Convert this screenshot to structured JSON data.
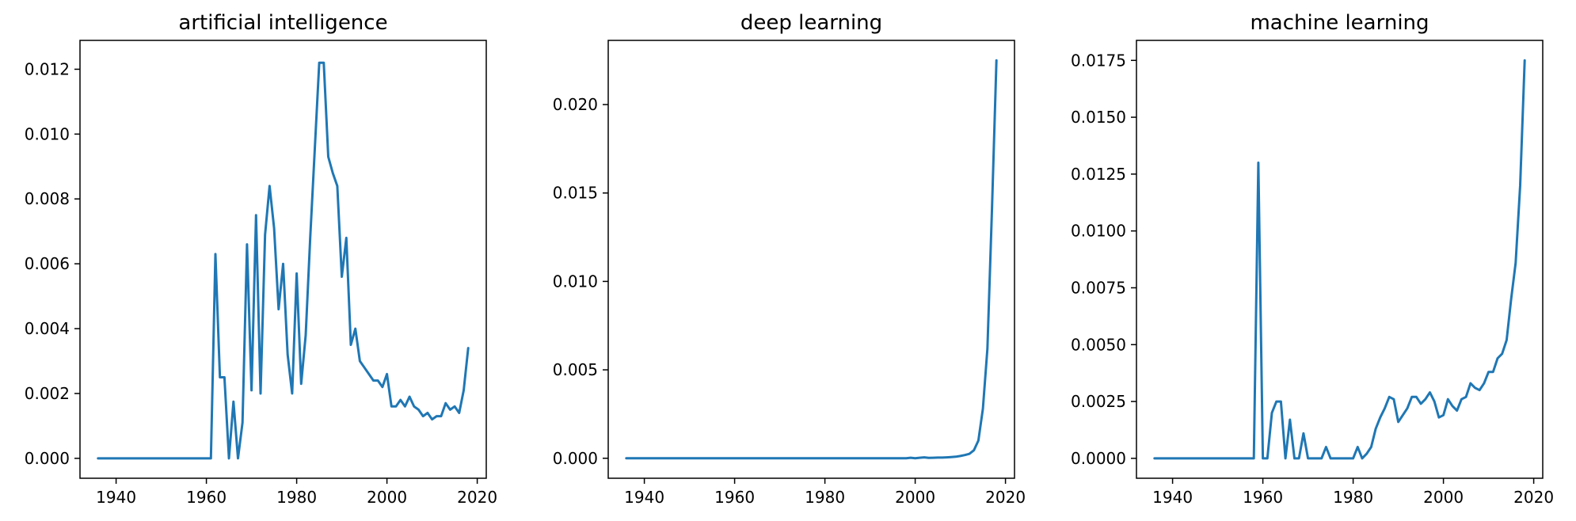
{
  "colors": {
    "series": "#1f77b4",
    "axis": "#000000",
    "background": "#ffffff"
  },
  "chart_data": [
    {
      "type": "line",
      "title": "artificial intelligence",
      "xlabel": "",
      "ylabel": "",
      "xlim": [
        1932,
        2022
      ],
      "ylim": [
        -0.000614,
        0.01289
      ],
      "xticks": [
        1940,
        1960,
        1980,
        2000,
        2020
      ],
      "xtick_labels": [
        "1940",
        "1960",
        "1980",
        "2000",
        "2020"
      ],
      "yticks": [
        0,
        0.002,
        0.004,
        0.006,
        0.008,
        0.01,
        0.012
      ],
      "ytick_labels": [
        "0.000",
        "0.002",
        "0.004",
        "0.006",
        "0.008",
        "0.010",
        "0.012"
      ],
      "grid": false,
      "x": [
        1936,
        1937,
        1938,
        1939,
        1940,
        1941,
        1942,
        1943,
        1944,
        1945,
        1946,
        1947,
        1948,
        1949,
        1950,
        1951,
        1952,
        1953,
        1954,
        1955,
        1956,
        1957,
        1958,
        1959,
        1960,
        1961,
        1962,
        1963,
        1964,
        1965,
        1966,
        1967,
        1968,
        1969,
        1970,
        1971,
        1972,
        1973,
        1974,
        1975,
        1976,
        1977,
        1978,
        1979,
        1980,
        1981,
        1982,
        1983,
        1984,
        1985,
        1986,
        1987,
        1988,
        1989,
        1990,
        1991,
        1992,
        1993,
        1994,
        1995,
        1996,
        1997,
        1998,
        1999,
        2000,
        2001,
        2002,
        2003,
        2004,
        2005,
        2006,
        2007,
        2008,
        2009,
        2010,
        2011,
        2012,
        2013,
        2014,
        2015,
        2016,
        2017,
        2018
      ],
      "y": [
        0,
        0,
        0,
        0,
        0,
        0,
        0,
        0,
        0,
        0,
        0,
        0,
        0,
        0,
        0,
        0,
        0,
        0,
        0,
        0,
        0,
        0,
        0,
        0,
        0,
        0,
        0.0063,
        0.0025,
        0.0025,
        0,
        0.00175,
        0,
        0.0011,
        0.0066,
        0.0021,
        0.0075,
        0.002,
        0.0069,
        0.0084,
        0.0071,
        0.0046,
        0.006,
        0.0032,
        0.002,
        0.0057,
        0.0023,
        0.0038,
        0.0068,
        0.0095,
        0.0122,
        0.0122,
        0.0093,
        0.0088,
        0.0084,
        0.0056,
        0.0068,
        0.0035,
        0.004,
        0.003,
        0.0028,
        0.0026,
        0.0024,
        0.0024,
        0.0022,
        0.0026,
        0.0016,
        0.0016,
        0.0018,
        0.0016,
        0.0019,
        0.0016,
        0.0015,
        0.0013,
        0.0014,
        0.0012,
        0.0013,
        0.0013,
        0.0017,
        0.0015,
        0.0016,
        0.0014,
        0.0021,
        0.0034
      ]
    },
    {
      "type": "line",
      "title": "deep learning",
      "xlabel": "",
      "ylabel": "",
      "xlim": [
        1932,
        2022
      ],
      "ylim": [
        -0.00113,
        0.02363
      ],
      "xticks": [
        1940,
        1960,
        1980,
        2000,
        2020
      ],
      "xtick_labels": [
        "1940",
        "1960",
        "1980",
        "2000",
        "2020"
      ],
      "yticks": [
        0,
        0.005,
        0.01,
        0.015,
        0.02
      ],
      "ytick_labels": [
        "0.000",
        "0.005",
        "0.010",
        "0.015",
        "0.020"
      ],
      "grid": false,
      "x": [
        1936,
        1937,
        1938,
        1939,
        1940,
        1941,
        1942,
        1943,
        1944,
        1945,
        1946,
        1947,
        1948,
        1949,
        1950,
        1951,
        1952,
        1953,
        1954,
        1955,
        1956,
        1957,
        1958,
        1959,
        1960,
        1961,
        1962,
        1963,
        1964,
        1965,
        1966,
        1967,
        1968,
        1969,
        1970,
        1971,
        1972,
        1973,
        1974,
        1975,
        1976,
        1977,
        1978,
        1979,
        1980,
        1981,
        1982,
        1983,
        1984,
        1985,
        1986,
        1987,
        1988,
        1989,
        1990,
        1991,
        1992,
        1993,
        1994,
        1995,
        1996,
        1997,
        1998,
        1999,
        2000,
        2001,
        2002,
        2003,
        2004,
        2005,
        2006,
        2007,
        2008,
        2009,
        2010,
        2011,
        2012,
        2013,
        2014,
        2015,
        2016,
        2017,
        2018
      ],
      "y": [
        0,
        0,
        0,
        0,
        0,
        0,
        0,
        0,
        0,
        0,
        0,
        0,
        0,
        0,
        0,
        0,
        0,
        0,
        0,
        0,
        0,
        0,
        0,
        0,
        0,
        0,
        0,
        0,
        0,
        0,
        0,
        0,
        0,
        0,
        0,
        0,
        0,
        0,
        0,
        0,
        0,
        0,
        0,
        0,
        0,
        0,
        0,
        0,
        0,
        0,
        0,
        0,
        0,
        0,
        0,
        0,
        0,
        0,
        0,
        0,
        0,
        0,
        0,
        3e-05,
        0,
        3e-05,
        5e-05,
        2e-05,
        3e-05,
        4e-05,
        4e-05,
        5e-05,
        7e-05,
        9e-05,
        0.00013,
        0.00018,
        0.00025,
        0.00045,
        0.001,
        0.0028,
        0.0062,
        0.014,
        0.0225
      ]
    },
    {
      "type": "line",
      "title": "machine learning",
      "xlabel": "",
      "ylabel": "",
      "xlim": [
        1932,
        2022
      ],
      "ylim": [
        -0.000875,
        0.01838
      ],
      "xticks": [
        1940,
        1960,
        1980,
        2000,
        2020
      ],
      "xtick_labels": [
        "1940",
        "1960",
        "1980",
        "2000",
        "2020"
      ],
      "yticks": [
        0,
        0.0025,
        0.005,
        0.0075,
        0.01,
        0.0125,
        0.015,
        0.0175
      ],
      "ytick_labels": [
        "0.0000",
        "0.0025",
        "0.0050",
        "0.0075",
        "0.0100",
        "0.0125",
        "0.0150",
        "0.0175"
      ],
      "grid": false,
      "x": [
        1936,
        1937,
        1938,
        1939,
        1940,
        1941,
        1942,
        1943,
        1944,
        1945,
        1946,
        1947,
        1948,
        1949,
        1950,
        1951,
        1952,
        1953,
        1954,
        1955,
        1956,
        1957,
        1958,
        1959,
        1960,
        1961,
        1962,
        1963,
        1964,
        1965,
        1966,
        1967,
        1968,
        1969,
        1970,
        1971,
        1972,
        1973,
        1974,
        1975,
        1976,
        1977,
        1978,
        1979,
        1980,
        1981,
        1982,
        1983,
        1984,
        1985,
        1986,
        1987,
        1988,
        1989,
        1990,
        1991,
        1992,
        1993,
        1994,
        1995,
        1996,
        1997,
        1998,
        1999,
        2000,
        2001,
        2002,
        2003,
        2004,
        2005,
        2006,
        2007,
        2008,
        2009,
        2010,
        2011,
        2012,
        2013,
        2014,
        2015,
        2016,
        2017,
        2018
      ],
      "y": [
        0,
        0,
        0,
        0,
        0,
        0,
        0,
        0,
        0,
        0,
        0,
        0,
        0,
        0,
        0,
        0,
        0,
        0,
        0,
        0,
        0,
        0,
        0,
        0.013,
        0,
        0,
        0.002,
        0.0025,
        0.0025,
        0,
        0.0017,
        0,
        0,
        0.0011,
        0,
        0,
        0,
        0,
        0.0005,
        0,
        0,
        0,
        0,
        0,
        0,
        0.0005,
        0,
        0.0002,
        0.0005,
        0.0013,
        0.0018,
        0.0022,
        0.0027,
        0.0026,
        0.0016,
        0.0019,
        0.0022,
        0.0027,
        0.0027,
        0.0024,
        0.0026,
        0.0029,
        0.0025,
        0.0018,
        0.0019,
        0.0026,
        0.0023,
        0.0021,
        0.0026,
        0.0027,
        0.0033,
        0.0031,
        0.003,
        0.0033,
        0.0038,
        0.0038,
        0.0044,
        0.0046,
        0.0052,
        0.007,
        0.0086,
        0.012,
        0.0175
      ]
    }
  ]
}
